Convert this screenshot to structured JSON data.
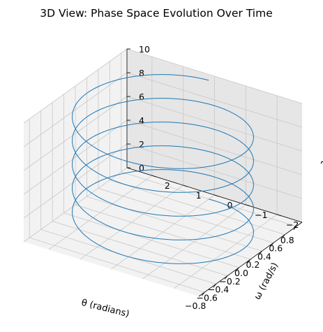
{
  "chart_data": {
    "type": "line",
    "projection": "3d",
    "title": "3D View: Phase Space Evolution Over Time",
    "xlabel": "θ (radians)",
    "ylabel": "ω (rad/s)",
    "zlabel": "t",
    "xlim": [
      -0.9,
      0.9
    ],
    "ylim": [
      -2.8,
      2.8
    ],
    "zlim": [
      0,
      10
    ],
    "x_ticks": [
      "−0.8",
      "−0.6",
      "−0.4",
      "−0.2",
      "0.0",
      "0.2",
      "0.4",
      "0.6",
      "0.8"
    ],
    "y_ticks": [
      "−2",
      "−1",
      "0",
      "1",
      "2"
    ],
    "z_ticks": [
      "0",
      "2",
      "4",
      "6",
      "8",
      "10"
    ],
    "grid": true,
    "legend": "none",
    "series": [
      {
        "curve": "theta = 0.8*cos(2*pi*t/2), omega = -2.5*sin(2*pi*t/2)",
        "t_range": [
          0,
          10
        ],
        "theta_amplitude": 0.8,
        "omega_amplitude": 2.5,
        "period": 2.0,
        "color": "#1f77b4"
      }
    ],
    "colors": {
      "pane": "#f2f2f2",
      "pane_side": "#e6e6e6",
      "grid": "#c8c8c8",
      "line": "#1f77b4"
    }
  }
}
